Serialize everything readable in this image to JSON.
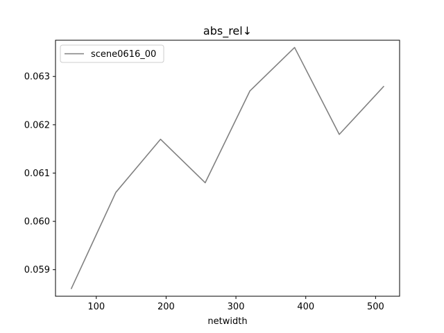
{
  "chart_data": {
    "type": "line",
    "title": "abs_rel↓",
    "xlabel": "netwidth",
    "ylabel": "",
    "xlim": [
      41.6,
      534.4
    ],
    "ylim": [
      0.05845,
      0.06375
    ],
    "xticks": [
      100,
      200,
      300,
      400,
      500
    ],
    "xtick_labels": [
      "100",
      "200",
      "300",
      "400",
      "500"
    ],
    "yticks": [
      0.059,
      0.06,
      0.061,
      0.062,
      0.063
    ],
    "ytick_labels": [
      "0.059",
      "0.060",
      "0.061",
      "0.062",
      "0.063"
    ],
    "grid": false,
    "legend_position": "top-left",
    "series": [
      {
        "name": "scene0616_00",
        "color": "#808080",
        "x": [
          64,
          128,
          192,
          256,
          320,
          384,
          448,
          512
        ],
        "y": [
          0.0586,
          0.0606,
          0.0617,
          0.0608,
          0.0627,
          0.0636,
          0.0618,
          0.0628
        ]
      }
    ]
  }
}
